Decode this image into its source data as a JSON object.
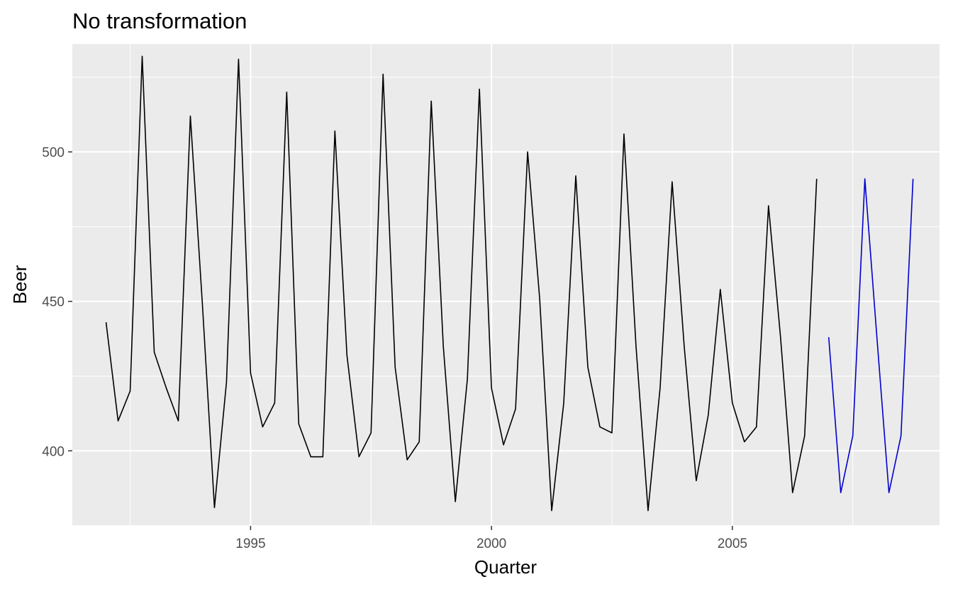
{
  "chart_data": {
    "type": "line",
    "title": "No transformation",
    "xlabel": "Quarter",
    "ylabel": "Beer",
    "x_ticks": [
      {
        "value": 1995,
        "label": "1995"
      },
      {
        "value": 2000,
        "label": "2000"
      },
      {
        "value": 2005,
        "label": "2005"
      }
    ],
    "y_ticks": [
      {
        "value": 400,
        "label": "400"
      },
      {
        "value": 450,
        "label": "450"
      },
      {
        "value": 500,
        "label": "500"
      }
    ],
    "xlim": [
      1991.3,
      2009.3
    ],
    "ylim": [
      374.9,
      536.1
    ],
    "grid": true,
    "legend": "none",
    "series": [
      {
        "color": "#000000",
        "x": [
          1992.0,
          1992.25,
          1992.5,
          1992.75,
          1993.0,
          1993.25,
          1993.5,
          1993.75,
          1994.0,
          1994.25,
          1994.5,
          1994.75,
          1995.0,
          1995.25,
          1995.5,
          1995.75,
          1996.0,
          1996.25,
          1996.5,
          1996.75,
          1997.0,
          1997.25,
          1997.5,
          1997.75,
          1998.0,
          1998.25,
          1998.5,
          1998.75,
          1999.0,
          1999.25,
          1999.5,
          1999.75,
          2000.0,
          2000.25,
          2000.5,
          2000.75,
          2001.0,
          2001.25,
          2001.5,
          2001.75,
          2002.0,
          2002.25,
          2002.5,
          2002.75,
          2003.0,
          2003.25,
          2003.5,
          2003.75,
          2004.0,
          2004.25,
          2004.5,
          2004.75,
          2005.0,
          2005.25,
          2005.5,
          2005.75,
          2006.0,
          2006.25,
          2006.5,
          2006.75
        ],
        "values": [
          443,
          410,
          420,
          532,
          433,
          421,
          410,
          512,
          449,
          381,
          423,
          531,
          426,
          408,
          416,
          520,
          409,
          398,
          398,
          507,
          432,
          398,
          406,
          526,
          428,
          397,
          403,
          517,
          435,
          383,
          424,
          521,
          421,
          402,
          414,
          500,
          451,
          380,
          416,
          492,
          428,
          408,
          406,
          506,
          435,
          380,
          421,
          490,
          435,
          390,
          412,
          454,
          416,
          403,
          408,
          482,
          438,
          386,
          405,
          491
        ]
      },
      {
        "color": "#0000cc",
        "x": [
          2007.0,
          2007.25,
          2007.5,
          2007.75,
          2008.0,
          2008.25,
          2008.5,
          2008.75
        ],
        "values": [
          438,
          386,
          405,
          491,
          438,
          386,
          405,
          491
        ]
      }
    ]
  }
}
